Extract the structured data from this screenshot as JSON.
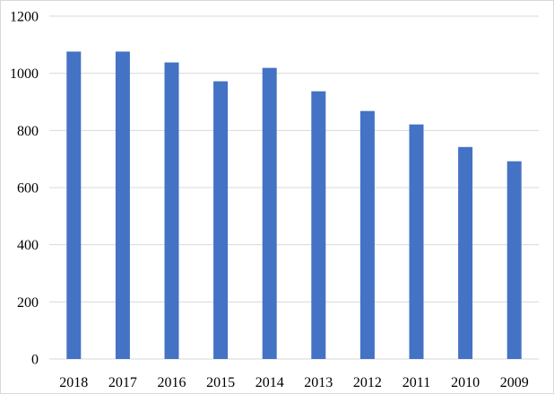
{
  "chart_data": {
    "type": "bar",
    "title": "",
    "xlabel": "",
    "ylabel": "",
    "categories": [
      "2018",
      "2017",
      "2016",
      "2015",
      "2014",
      "2013",
      "2012",
      "2011",
      "2010",
      "2009"
    ],
    "values": [
      1076,
      1076,
      1038,
      972,
      1019,
      937,
      868,
      821,
      742,
      692
    ],
    "ylim": [
      0,
      1200
    ],
    "yticks": [
      0,
      200,
      400,
      600,
      800,
      1000,
      1200
    ],
    "grid": true,
    "legend": "none",
    "colors": {
      "bar": "#4472c4",
      "grid": "#d9d9d9",
      "text": "#000000"
    }
  }
}
